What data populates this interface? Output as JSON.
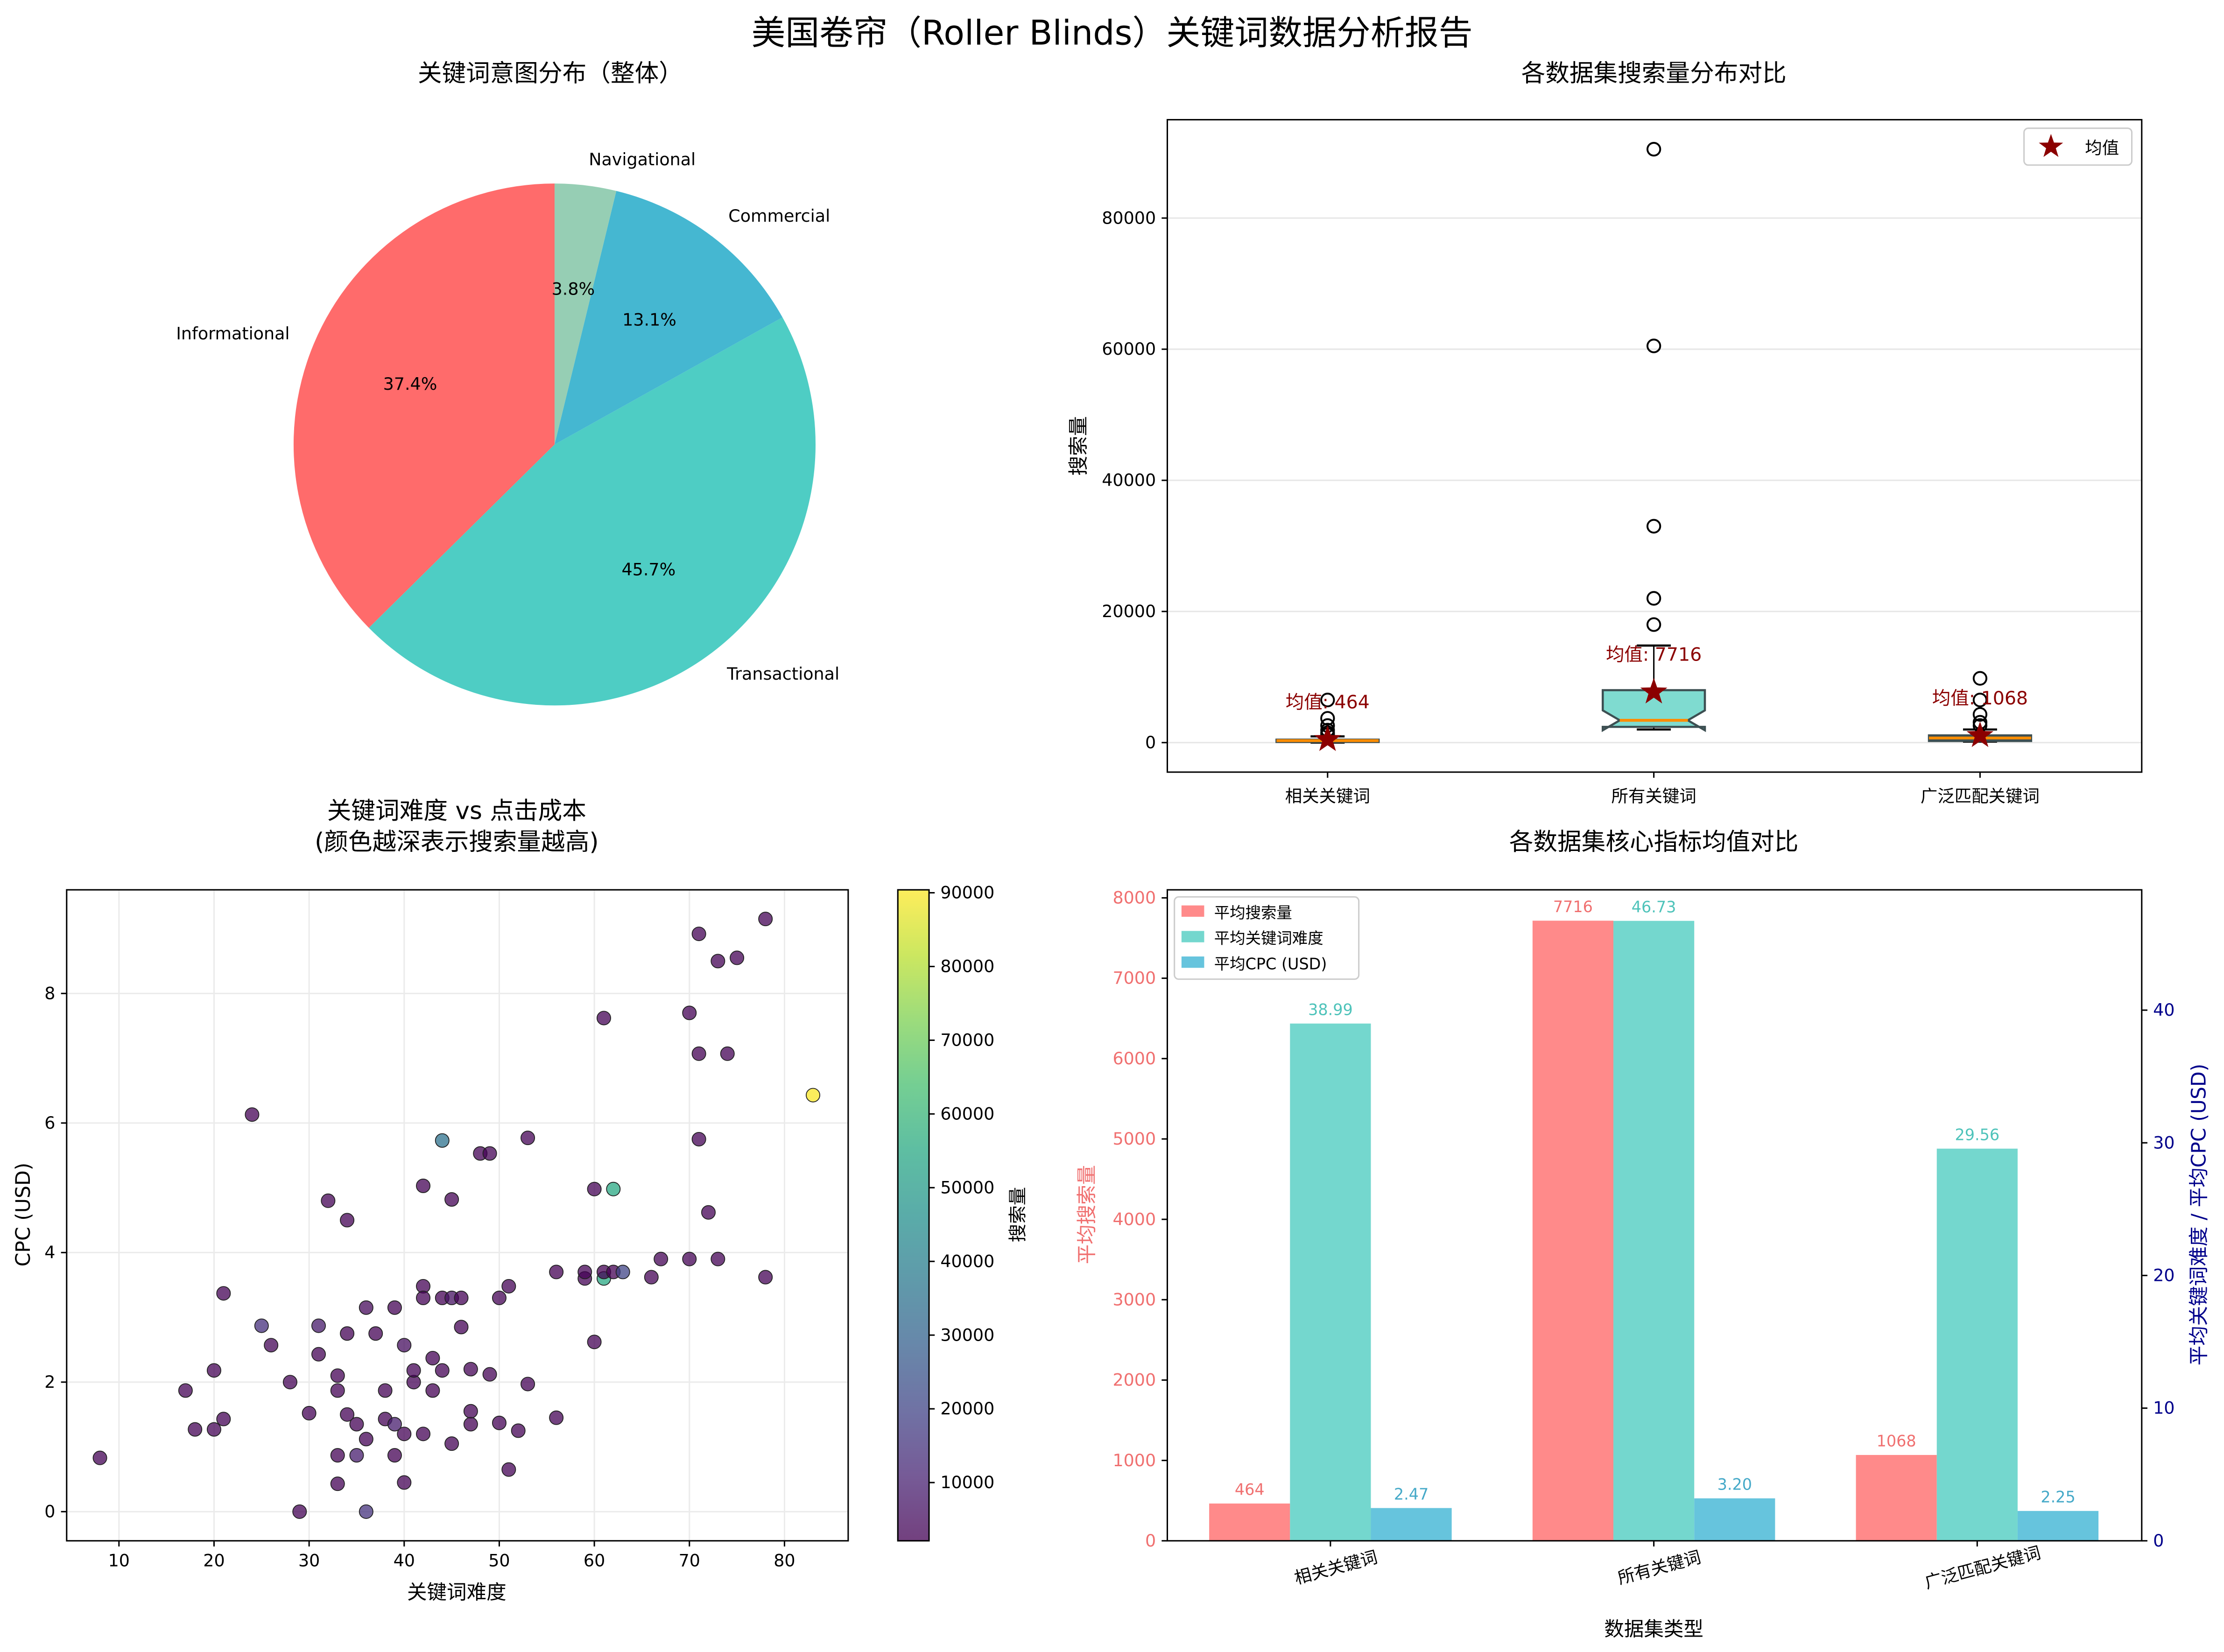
{
  "title": "美国卷帘（Roller Blinds）关键词数据分析报告",
  "chart_data": [
    {
      "type": "pie",
      "title": "关键词意图分布（整体）",
      "labels": [
        "Informational",
        "Transactional",
        "Commercial",
        "Navigational"
      ],
      "values": [
        37.4,
        45.7,
        13.1,
        3.8
      ],
      "pct_labels": [
        "37.4%",
        "45.7%",
        "13.1%",
        "3.8%"
      ],
      "colors": [
        "#FF6B6B",
        "#4ECDC4",
        "#45B7D1",
        "#96CEB4"
      ],
      "start_angle": 90
    },
    {
      "type": "box",
      "title": "各数据集搜索量分布对比",
      "ylabel": "搜索量",
      "categories": [
        "相关关键词",
        "所有关键词",
        "广泛匹配关键词"
      ],
      "ylim": [
        -4500,
        95000
      ],
      "yticks": [
        0,
        20000,
        40000,
        60000,
        80000
      ],
      "legend": "均值",
      "legend_position": "top-right",
      "boxes": [
        {
          "whislo": 0,
          "q1": 100,
          "med": 300,
          "q3": 450,
          "whishi": 950,
          "fliers": [
            6500,
            3700,
            2600,
            1900,
            1500,
            1200
          ],
          "mean": 464,
          "mean_label": "均值: 464",
          "color": "#4a3a3a"
        },
        {
          "whislo": 2000,
          "q1": 2400,
          "med": 3400,
          "q3": 8000,
          "whishi": 14800,
          "fliers": [
            18000,
            22000,
            33000,
            60500,
            90500
          ],
          "mean": 7716,
          "mean_label": "均值: 7716",
          "color": "#7fdbd0"
        },
        {
          "whislo": 150,
          "q1": 250,
          "med": 700,
          "q3": 1100,
          "whishi": 2000,
          "fliers": [
            9800,
            6500,
            4300,
            3100,
            2600
          ],
          "mean": 1068,
          "mean_label": "均值: 1068",
          "color": "#3d5357"
        }
      ]
    },
    {
      "type": "scatter",
      "title": "关键词难度 vs 点击成本",
      "subtitle": "(颜色越深表示搜索量越高)",
      "xlabel": "关键词难度",
      "ylabel": "CPC (USD)",
      "xlim": [
        4.5,
        86.7
      ],
      "ylim": [
        -0.45,
        9.6
      ],
      "xticks": [
        10,
        20,
        30,
        40,
        50,
        60,
        70,
        80
      ],
      "yticks": [
        0,
        2,
        4,
        6,
        8
      ],
      "colorbar_label": "搜索量",
      "colorbar_range": [
        2100,
        90400
      ],
      "colorbar_ticks": [
        10000,
        20000,
        30000,
        40000,
        50000,
        60000,
        70000,
        80000,
        90000
      ],
      "points": [
        [
          8,
          0.83,
          2500
        ],
        [
          17,
          1.87,
          2500
        ],
        [
          18,
          1.27,
          2500
        ],
        [
          20,
          1.27,
          2500
        ],
        [
          20,
          2.18,
          2500
        ],
        [
          21,
          1.43,
          2500
        ],
        [
          21,
          3.37,
          2500
        ],
        [
          24,
          6.13,
          2500
        ],
        [
          25,
          2.87,
          14000
        ],
        [
          26,
          2.57,
          3000
        ],
        [
          28,
          2.0,
          2500
        ],
        [
          29,
          0,
          2500
        ],
        [
          30,
          1.52,
          2500
        ],
        [
          31,
          2.43,
          2500
        ],
        [
          31,
          2.87,
          8000
        ],
        [
          32,
          4.8,
          2500
        ],
        [
          33,
          0.43,
          2500
        ],
        [
          33,
          0.87,
          2500
        ],
        [
          33,
          2.1,
          2500
        ],
        [
          33,
          1.87,
          2500
        ],
        [
          34,
          2.75,
          2500
        ],
        [
          34,
          4.5,
          2500
        ],
        [
          34,
          1.5,
          2500
        ],
        [
          35,
          1.35,
          2500
        ],
        [
          35,
          0.87,
          9000
        ],
        [
          36,
          1.12,
          2500
        ],
        [
          36,
          3.15,
          4000
        ],
        [
          36,
          0,
          15000
        ],
        [
          37,
          2.75,
          2500
        ],
        [
          38,
          1.43,
          2500
        ],
        [
          38,
          1.87,
          2500
        ],
        [
          39,
          3.15,
          2500
        ],
        [
          39,
          1.35,
          9000
        ],
        [
          39,
          0.87,
          2200
        ],
        [
          40,
          2.57,
          5000
        ],
        [
          40,
          1.2,
          2500
        ],
        [
          40,
          0.45,
          2500
        ],
        [
          41,
          2.0,
          2500
        ],
        [
          41,
          2.18,
          2500
        ],
        [
          42,
          1.2,
          2500
        ],
        [
          42,
          3.48,
          2500
        ],
        [
          42,
          3.3,
          2500
        ],
        [
          42,
          5.03,
          2500
        ],
        [
          43,
          2.37,
          2500
        ],
        [
          43,
          1.87,
          2200
        ],
        [
          44,
          2.18,
          2500
        ],
        [
          44,
          3.3,
          2500
        ],
        [
          44,
          5.73,
          35000
        ],
        [
          45,
          1.05,
          2500
        ],
        [
          45,
          4.82,
          2500
        ],
        [
          45,
          3.3,
          6000
        ],
        [
          46,
          3.3,
          2500
        ],
        [
          46,
          2.85,
          2500
        ],
        [
          47,
          2.2,
          2500
        ],
        [
          47,
          1.55,
          2500
        ],
        [
          47,
          1.35,
          2200
        ],
        [
          48,
          5.53,
          2500
        ],
        [
          49,
          5.53,
          2500
        ],
        [
          49,
          2.12,
          2500
        ],
        [
          50,
          1.37,
          2500
        ],
        [
          50,
          3.3,
          2500
        ],
        [
          51,
          3.48,
          2500
        ],
        [
          51,
          0.65,
          2500
        ],
        [
          52,
          1.25,
          2500
        ],
        [
          53,
          5.77,
          2500
        ],
        [
          53,
          1.97,
          2500
        ],
        [
          56,
          1.45,
          2500
        ],
        [
          56,
          3.7,
          2200
        ],
        [
          59,
          3.6,
          2500
        ],
        [
          59,
          3.7,
          2500
        ],
        [
          60,
          4.98,
          2500
        ],
        [
          60,
          2.62,
          2500
        ],
        [
          61,
          3.6,
          55000
        ],
        [
          61,
          3.7,
          2200
        ],
        [
          61,
          7.62,
          2500
        ],
        [
          62,
          3.7,
          2200
        ],
        [
          62,
          4.98,
          55000
        ],
        [
          63,
          3.7,
          20000
        ],
        [
          66,
          3.62,
          2500
        ],
        [
          67,
          3.9,
          2500
        ],
        [
          70,
          3.9,
          2500
        ],
        [
          70,
          7.7,
          2500
        ],
        [
          71,
          8.92,
          2500
        ],
        [
          71,
          7.07,
          2200
        ],
        [
          71,
          5.75,
          2500
        ],
        [
          72,
          4.62,
          2500
        ],
        [
          73,
          8.5,
          2500
        ],
        [
          73,
          3.9,
          2500
        ],
        [
          74,
          7.07,
          2500
        ],
        [
          75,
          8.55,
          2500
        ],
        [
          78,
          9.15,
          2500
        ],
        [
          78,
          3.62,
          2500
        ],
        [
          83,
          6.43,
          90000
        ]
      ]
    },
    {
      "type": "bar",
      "title": "各数据集核心指标均值对比",
      "xlabel": "数据集类型",
      "ylabel_left": "平均搜索量",
      "ylabel_right": "平均关键词难度 / 平均CPC (USD)",
      "categories": [
        "相关关键词",
        "所有关键词",
        "广泛匹配关键词"
      ],
      "ylim_left": [
        0,
        8100
      ],
      "ylim_right": [
        0,
        49.07
      ],
      "yticks_left": [
        0,
        1000,
        2000,
        3000,
        4000,
        5000,
        6000,
        7000,
        8000
      ],
      "yticks_right": [
        0,
        10,
        20,
        30,
        40
      ],
      "legend_position": "top-left",
      "series": [
        {
          "name": "平均搜索量",
          "axis": "left",
          "color": "#FF8A8A",
          "label_color": "#F07070",
          "values": [
            464,
            7716,
            1068
          ],
          "labels": [
            "464",
            "7716",
            "1068"
          ]
        },
        {
          "name": "平均关键词难度",
          "axis": "right",
          "color": "#74D7CE",
          "label_color": "#4EC3BA",
          "values": [
            38.99,
            46.73,
            29.56
          ],
          "labels": [
            "38.99",
            "46.73",
            "29.56"
          ]
        },
        {
          "name": "平均CPC (USD)",
          "axis": "right",
          "color": "#66C4DD",
          "label_color": "#45A9C8",
          "values": [
            2.47,
            3.2,
            2.25
          ],
          "labels": [
            "2.47",
            "3.20",
            "2.25"
          ]
        }
      ]
    }
  ]
}
